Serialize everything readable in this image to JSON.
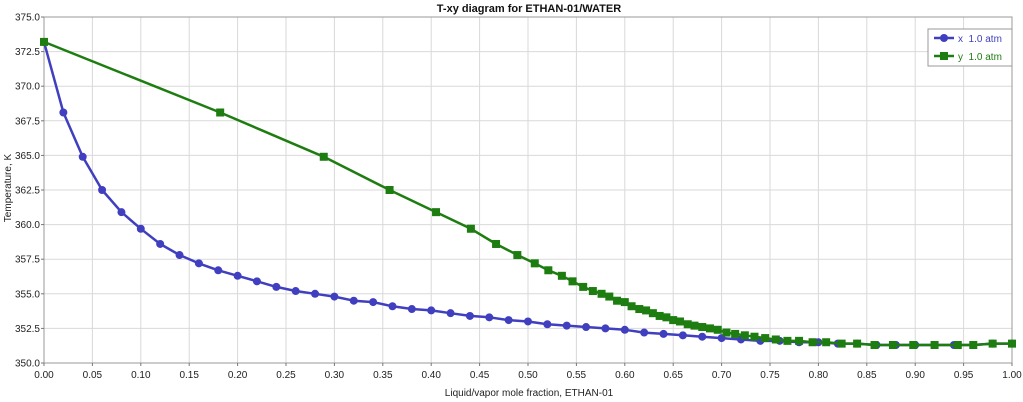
{
  "chart_data": {
    "type": "line",
    "title": "T-xy diagram for ETHAN-01/WATER",
    "xlabel": "Liquid/vapor mole fraction, ETHAN-01",
    "ylabel": "Temperature, K",
    "xlim": [
      0,
      1
    ],
    "ylim": [
      350,
      375
    ],
    "x_ticks": [
      "0.00",
      "0.05",
      "0.10",
      "0.15",
      "0.20",
      "0.25",
      "0.30",
      "0.35",
      "0.40",
      "0.45",
      "0.50",
      "0.55",
      "0.60",
      "0.65",
      "0.70",
      "0.75",
      "0.80",
      "0.85",
      "0.90",
      "0.95",
      "1.00"
    ],
    "y_ticks": [
      "350.0",
      "352.5",
      "355.0",
      "357.5",
      "360.0",
      "362.5",
      "365.0",
      "367.5",
      "370.0",
      "372.5",
      "375.0"
    ],
    "grid": true,
    "legend_position": "top-right",
    "series": [
      {
        "name": "x  1.0 atm",
        "color": "#3f3fbf",
        "marker": "circle",
        "points": [
          [
            0.0,
            373.2
          ],
          [
            0.02,
            368.1
          ],
          [
            0.04,
            364.9
          ],
          [
            0.06,
            362.5
          ],
          [
            0.08,
            360.9
          ],
          [
            0.1,
            359.7
          ],
          [
            0.12,
            358.6
          ],
          [
            0.14,
            357.8
          ],
          [
            0.16,
            357.2
          ],
          [
            0.18,
            356.7
          ],
          [
            0.2,
            356.3
          ],
          [
            0.22,
            355.9
          ],
          [
            0.24,
            355.5
          ],
          [
            0.26,
            355.2
          ],
          [
            0.28,
            355.0
          ],
          [
            0.3,
            354.8
          ],
          [
            0.32,
            354.5
          ],
          [
            0.34,
            354.4
          ],
          [
            0.36,
            354.1
          ],
          [
            0.38,
            353.9
          ],
          [
            0.4,
            353.8
          ],
          [
            0.42,
            353.6
          ],
          [
            0.44,
            353.4
          ],
          [
            0.46,
            353.3
          ],
          [
            0.48,
            353.1
          ],
          [
            0.5,
            353.0
          ],
          [
            0.52,
            352.8
          ],
          [
            0.54,
            352.7
          ],
          [
            0.56,
            352.6
          ],
          [
            0.58,
            352.5
          ],
          [
            0.6,
            352.4
          ],
          [
            0.62,
            352.2
          ],
          [
            0.64,
            352.1
          ],
          [
            0.66,
            352.0
          ],
          [
            0.68,
            351.9
          ],
          [
            0.7,
            351.8
          ],
          [
            0.72,
            351.7
          ],
          [
            0.74,
            351.6
          ],
          [
            0.76,
            351.6
          ],
          [
            0.78,
            351.5
          ],
          [
            0.8,
            351.5
          ],
          [
            0.82,
            351.4
          ],
          [
            0.84,
            351.4
          ],
          [
            0.86,
            351.3
          ],
          [
            0.88,
            351.3
          ],
          [
            0.9,
            351.3
          ],
          [
            0.92,
            351.3
          ],
          [
            0.94,
            351.3
          ],
          [
            0.96,
            351.3
          ],
          [
            0.98,
            351.4
          ],
          [
            1.0,
            351.4
          ]
        ]
      },
      {
        "name": "y  1.0 atm",
        "color": "#1e7d10",
        "marker": "square",
        "points": [
          [
            0.0,
            373.2
          ],
          [
            0.182,
            368.1
          ],
          [
            0.289,
            364.9
          ],
          [
            0.357,
            362.5
          ],
          [
            0.405,
            360.9
          ],
          [
            0.441,
            359.7
          ],
          [
            0.467,
            358.6
          ],
          [
            0.489,
            357.8
          ],
          [
            0.507,
            357.2
          ],
          [
            0.521,
            356.7
          ],
          [
            0.535,
            356.3
          ],
          [
            0.546,
            355.9
          ],
          [
            0.557,
            355.5
          ],
          [
            0.567,
            355.2
          ],
          [
            0.576,
            355.0
          ],
          [
            0.584,
            354.8
          ],
          [
            0.592,
            354.5
          ],
          [
            0.6,
            354.4
          ],
          [
            0.607,
            354.1
          ],
          [
            0.615,
            353.9
          ],
          [
            0.622,
            353.8
          ],
          [
            0.629,
            353.6
          ],
          [
            0.636,
            353.4
          ],
          [
            0.643,
            353.3
          ],
          [
            0.65,
            353.1
          ],
          [
            0.657,
            353.0
          ],
          [
            0.665,
            352.8
          ],
          [
            0.672,
            352.7
          ],
          [
            0.68,
            352.6
          ],
          [
            0.688,
            352.5
          ],
          [
            0.696,
            352.4
          ],
          [
            0.705,
            352.2
          ],
          [
            0.714,
            352.1
          ],
          [
            0.724,
            352.0
          ],
          [
            0.734,
            351.9
          ],
          [
            0.745,
            351.8
          ],
          [
            0.756,
            351.7
          ],
          [
            0.768,
            351.6
          ],
          [
            0.78,
            351.6
          ],
          [
            0.794,
            351.5
          ],
          [
            0.808,
            351.5
          ],
          [
            0.824,
            351.4
          ],
          [
            0.84,
            351.4
          ],
          [
            0.858,
            351.3
          ],
          [
            0.877,
            351.3
          ],
          [
            0.898,
            351.3
          ],
          [
            0.92,
            351.3
          ],
          [
            0.944,
            351.3
          ],
          [
            0.96,
            351.3
          ],
          [
            0.98,
            351.4
          ],
          [
            1.0,
            351.4
          ]
        ]
      }
    ]
  }
}
